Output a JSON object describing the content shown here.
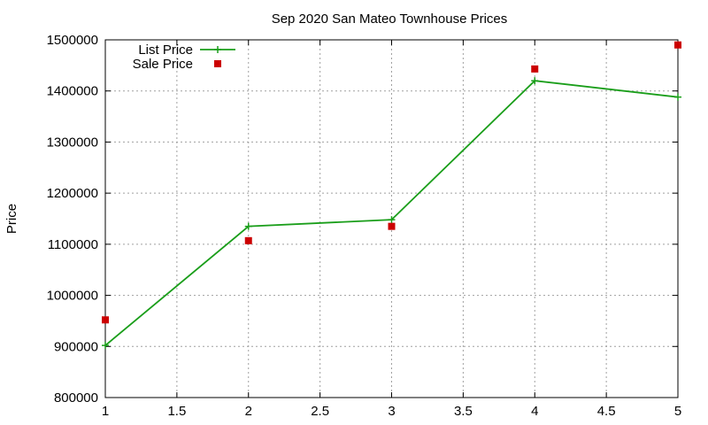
{
  "chart_data": {
    "type": "line",
    "title": "Sep 2020 San Mateo Townhouse Prices",
    "xlabel": "",
    "ylabel": "Price",
    "xlim": [
      1,
      5
    ],
    "ylim": [
      800000,
      1500000
    ],
    "xticks": [
      "1",
      "1.5",
      "2",
      "2.5",
      "3",
      "3.5",
      "4",
      "4.5",
      "5"
    ],
    "yticks": [
      "800000",
      "900000",
      "1000000",
      "1100000",
      "1200000",
      "1300000",
      "1400000",
      "1500000"
    ],
    "grid": true,
    "legend_position": "top-left",
    "series": [
      {
        "name": "List Price",
        "style": "linespoints",
        "color": "#1a9e1a",
        "marker": "plus",
        "x": [
          1,
          2,
          3,
          4,
          5
        ],
        "y": [
          902000,
          1135000,
          1148000,
          1420000,
          1388000
        ]
      },
      {
        "name": "Sale Price",
        "style": "points",
        "color": "#cc0000",
        "marker": "square",
        "x": [
          1,
          2,
          3,
          4,
          5
        ],
        "y": [
          952000,
          1107000,
          1135000,
          1443000,
          1490000
        ]
      }
    ]
  }
}
